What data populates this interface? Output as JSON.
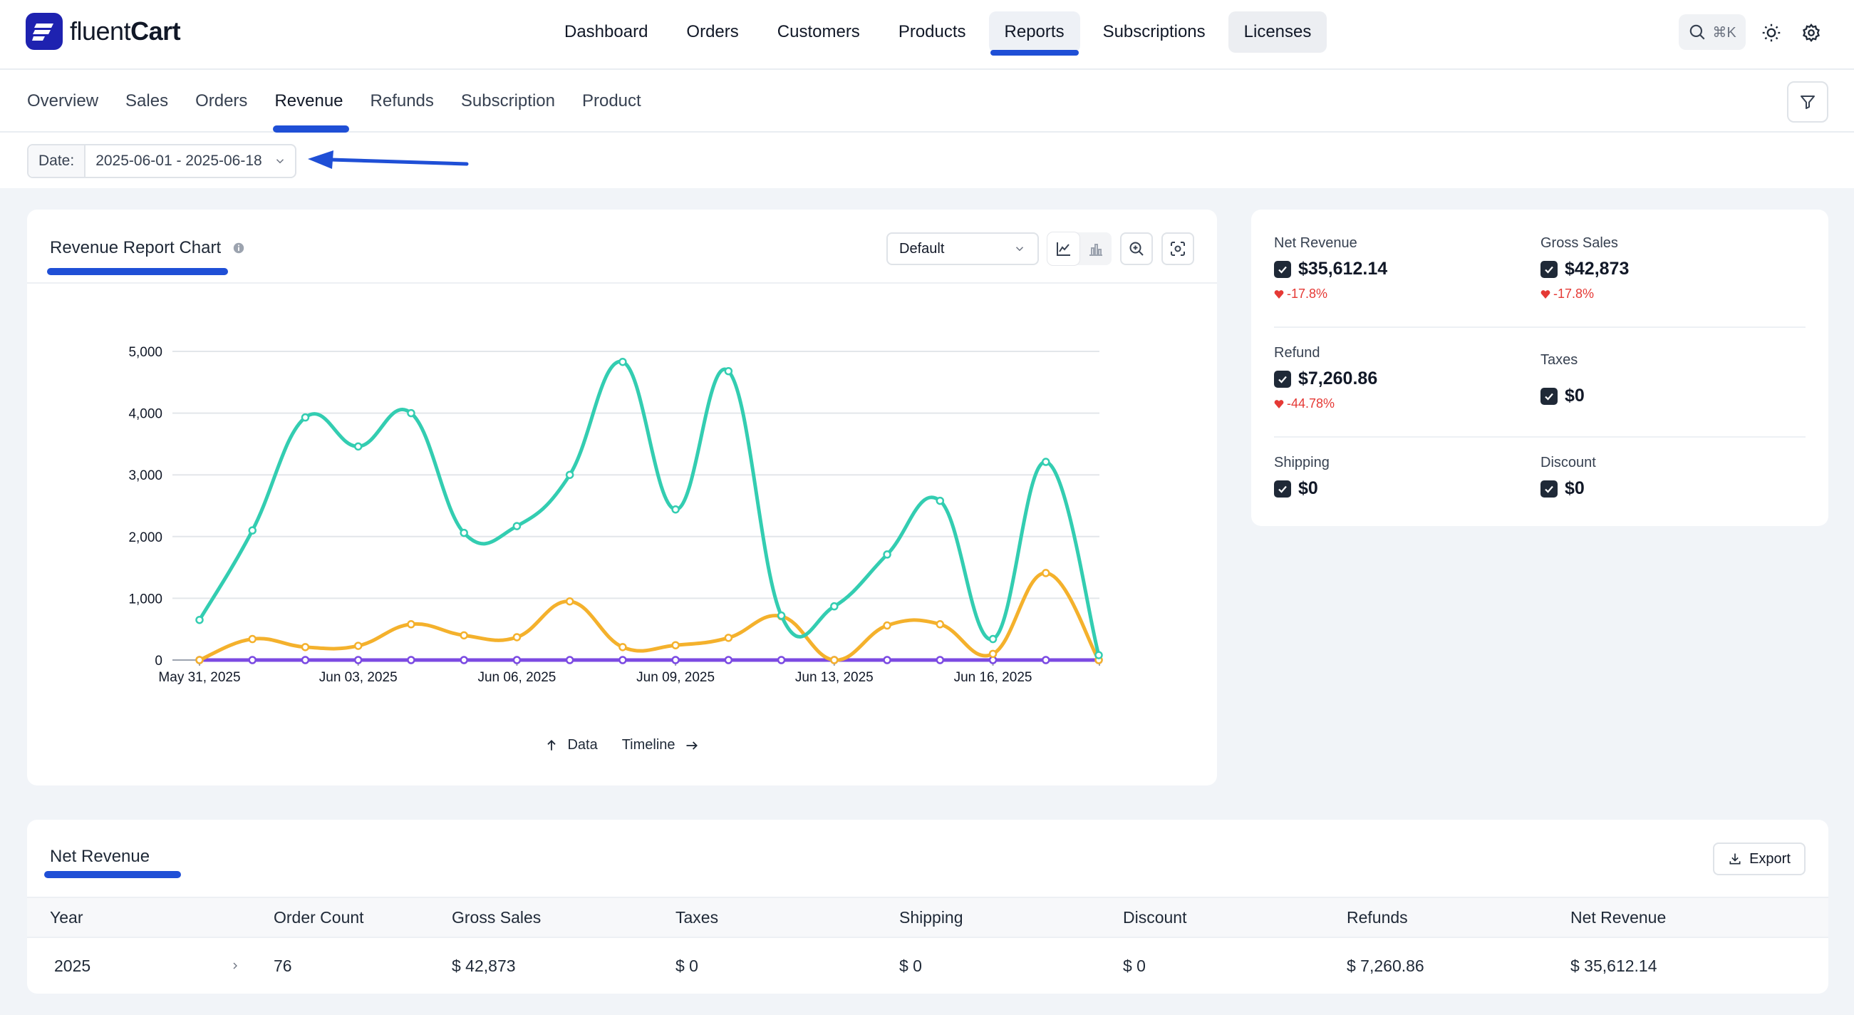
{
  "app": {
    "logo_light": "fluent",
    "logo_bold": "Cart"
  },
  "main_nav": [
    {
      "label": "Dashboard"
    },
    {
      "label": "Orders"
    },
    {
      "label": "Customers"
    },
    {
      "label": "Products"
    },
    {
      "label": "Reports"
    },
    {
      "label": "Subscriptions"
    },
    {
      "label": "Licenses"
    }
  ],
  "search_shortcut": "⌘K",
  "sub_nav": [
    {
      "label": "Overview"
    },
    {
      "label": "Sales"
    },
    {
      "label": "Orders"
    },
    {
      "label": "Revenue"
    },
    {
      "label": "Refunds"
    },
    {
      "label": "Subscription"
    },
    {
      "label": "Product"
    }
  ],
  "date_filter": {
    "label": "Date:",
    "value": "2025-06-01 - 2025-06-18"
  },
  "chart_card": {
    "title": "Revenue Report Chart",
    "select_value": "Default",
    "footer_data": "Data",
    "footer_timeline": "Timeline"
  },
  "chart_data": {
    "type": "line",
    "x_tick_labels": [
      "May 31, 2025",
      "Jun 03, 2025",
      "Jun 06, 2025",
      "Jun 09, 2025",
      "Jun 13, 2025",
      "Jun 16, 2025"
    ],
    "y_tick_labels": [
      "0",
      "1,000",
      "2,000",
      "3,000",
      "4,000",
      "5,000"
    ],
    "ylim": [
      0,
      5000
    ],
    "grid": true,
    "series": [
      {
        "color": "#33cdb1",
        "values": [
          650,
          2100,
          3930,
          3460,
          4000,
          2060,
          2170,
          3000,
          4830,
          2440,
          4680,
          720,
          870,
          1710,
          2580,
          340,
          3210,
          80
        ]
      },
      {
        "color": "#f4b12c",
        "values": [
          0,
          340,
          210,
          230,
          580,
          400,
          370,
          950,
          210,
          240,
          360,
          710,
          0,
          560,
          580,
          100,
          1410,
          0
        ]
      },
      {
        "color": "#7b4ae2",
        "values": [
          0,
          0,
          0,
          0,
          0,
          0,
          0,
          0,
          0,
          0,
          0,
          0,
          0,
          0,
          0,
          0,
          0,
          0
        ]
      }
    ]
  },
  "stats": {
    "net_revenue": {
      "label": "Net Revenue",
      "value": "$35,612.14",
      "change": "-17.8%"
    },
    "gross_sales": {
      "label": "Gross Sales",
      "value": "$42,873",
      "change": "-17.8%"
    },
    "refund": {
      "label": "Refund",
      "value": "$7,260.86",
      "change": "-44.78%"
    },
    "taxes": {
      "label": "Taxes",
      "value": "$0"
    },
    "shipping": {
      "label": "Shipping",
      "value": "$0"
    },
    "discount": {
      "label": "Discount",
      "value": "$0"
    }
  },
  "table": {
    "title": "Net Revenue",
    "export_label": "Export",
    "headers": [
      "Year",
      "Order Count",
      "Gross Sales",
      "Taxes",
      "Shipping",
      "Discount",
      "Refunds",
      "Net Revenue"
    ],
    "rows": [
      [
        "2025",
        "76",
        "$ 42,873",
        "$ 0",
        "$ 0",
        "$ 0",
        "$ 7,260.86",
        "$ 35,612.14"
      ]
    ]
  }
}
